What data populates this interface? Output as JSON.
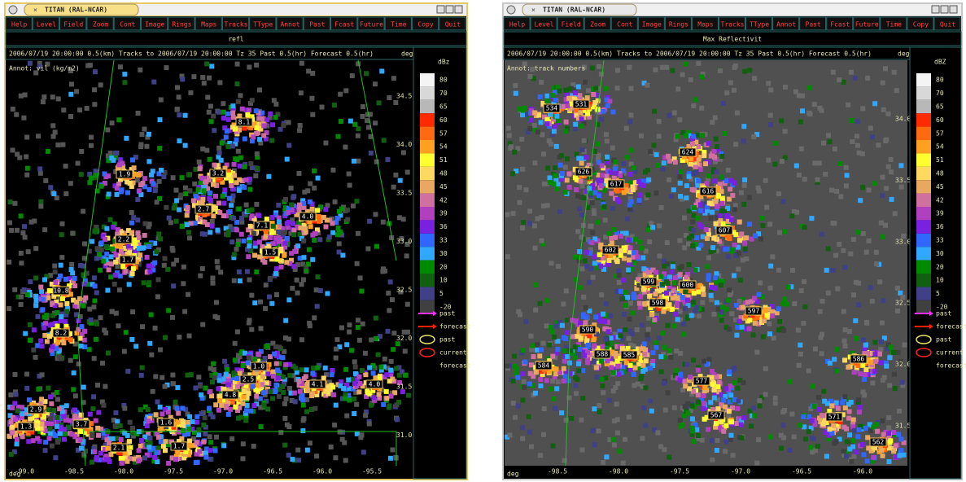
{
  "windows": [
    {
      "title": "TITAN (RAL-NCAR)",
      "menu": [
        "Help",
        "Level",
        "Field",
        "Zoom",
        "Cont",
        "Image",
        "Rings",
        "Maps",
        "Tracks",
        "TType",
        "Annot",
        "Past",
        "Fcast",
        "Future",
        "Time",
        "Copy",
        "Quit"
      ],
      "field": "refl",
      "status": "2006/07/19 20:00:00  0.5(km)  Tracks to 2006/07/19 20:00:00 Tz 35 Past 0.5(hr) Forecast 0.5(hr)",
      "annot": "Annot: vil (kg/m2)",
      "scale_units": "dBz",
      "y_unit": "deg",
      "x_unit": "deg",
      "scale": [
        "80",
        "70",
        "65",
        "60",
        "57",
        "54",
        "51",
        "48",
        "45",
        "42",
        "39",
        "36",
        "33",
        "30",
        "20",
        "10",
        "5",
        "-20"
      ],
      "legend": [
        "past",
        "forecast",
        "past",
        "current",
        "forecast"
      ],
      "yticks": [
        "34.5",
        "34.0",
        "33.5",
        "33.0",
        "32.5",
        "32.0",
        "31.5",
        "31.0"
      ],
      "xticks": [
        "-99.0",
        "-98.5",
        "-98.0",
        "-97.5",
        "-97.0",
        "-96.5",
        "-96.0",
        "-95.5"
      ],
      "storm_labels": [
        "8.1",
        "1.9",
        "3.2",
        "2.7",
        "7.1",
        "4.0",
        "2.2",
        "1.7",
        "1.5",
        "10.8",
        "8.2",
        "1.0",
        "2.5",
        "4.8",
        "4.1",
        "4.0",
        "2.9",
        "1.3",
        "3.7",
        "1.6",
        "2.1",
        "1.7"
      ]
    },
    {
      "title": "TITAN (RAL-NCAR)",
      "menu": [
        "Help",
        "Level",
        "Field",
        "Zoom",
        "Cont",
        "Image",
        "Rings",
        "Maps",
        "Tracks",
        "TType",
        "Annot",
        "Past",
        "Fcast",
        "Future",
        "Time",
        "Copy",
        "Quit"
      ],
      "field": "Max Reflectivit",
      "status": "2006/07/19 20:00:00  0.5(km)  Tracks to 2006/07/19 20:00:00 Tz 35 Past 0.5(hr) Forecast 0.5(hr)",
      "annot": "Annot: track numbers",
      "scale_units": "dBZ",
      "y_unit": "deg",
      "x_unit": "deg",
      "scale": [
        "80",
        "70",
        "65",
        "60",
        "57",
        "54",
        "51",
        "48",
        "45",
        "42",
        "39",
        "36",
        "33",
        "30",
        "20",
        "10",
        "5",
        "-20"
      ],
      "legend": [
        "past",
        "forecast",
        "past",
        "current",
        "forecast"
      ],
      "yticks": [
        "34.0",
        "33.5",
        "33.0",
        "32.5",
        "32.0",
        "31.5"
      ],
      "xticks": [
        "-98.5",
        "-98.0",
        "-97.5",
        "-97.0",
        "-96.5",
        "-96.0"
      ],
      "storm_labels": [
        "534",
        "531",
        "624",
        "626",
        "617",
        "616",
        "607",
        "602",
        "599",
        "600",
        "598",
        "597",
        "590",
        "588",
        "585",
        "584",
        "586",
        "577",
        "567",
        "571",
        "562"
      ]
    }
  ],
  "scale_colors": [
    "#f4f4f4",
    "#d8d8d8",
    "#b8b8b8",
    "#ff2a00",
    "#ff6a10",
    "#ffa020",
    "#ffff30",
    "#ffd860",
    "#e8a860",
    "#d070a0",
    "#b040c0",
    "#7a20e0",
    "#3068ff",
    "#30a8ff",
    "#008a00",
    "#106010",
    "#404088",
    "#404040"
  ],
  "legend_colors": [
    "#ff30ff",
    "#ff2000",
    "#e8e060",
    "#ff2020",
    "#000000"
  ]
}
